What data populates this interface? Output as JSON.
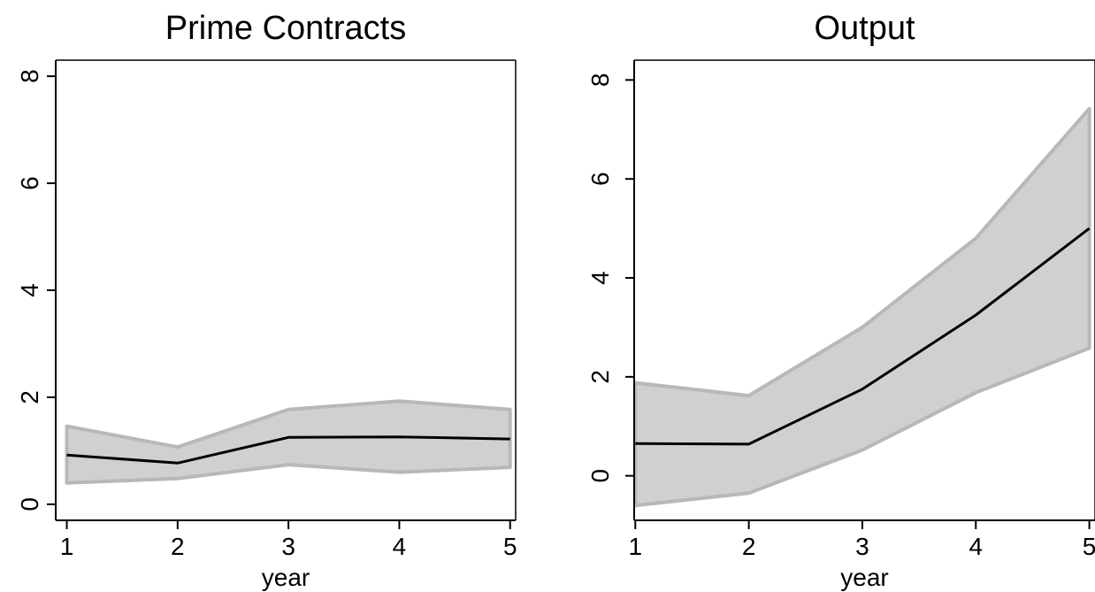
{
  "chart_data": [
    {
      "type": "line",
      "title": "Prime Contracts",
      "xlabel": "year",
      "ylabel": "",
      "x": [
        1,
        2,
        3,
        4,
        5
      ],
      "xticks": [
        1,
        2,
        3,
        4,
        5
      ],
      "yticks": [
        0,
        2,
        4,
        6,
        8
      ],
      "xlim": [
        0.9,
        5.05
      ],
      "ylim": [
        -0.3,
        8.3
      ],
      "grid": false,
      "series": [
        {
          "values": [
            0.92,
            0.77,
            1.25,
            1.26,
            1.22
          ],
          "lower": [
            0.4,
            0.48,
            0.74,
            0.6,
            0.69
          ],
          "upper": [
            1.46,
            1.07,
            1.77,
            1.93,
            1.77
          ]
        }
      ],
      "colors": {
        "line": "#000000",
        "band_fill": "#d0d0d0",
        "band_edge": "#b8b8b8"
      }
    },
    {
      "type": "line",
      "title": "Output",
      "xlabel": "year",
      "ylabel": "",
      "x": [
        1,
        2,
        3,
        4,
        5
      ],
      "xticks": [
        1,
        2,
        3,
        4,
        5
      ],
      "yticks": [
        0,
        2,
        4,
        6,
        8
      ],
      "xlim": [
        0.99,
        5.05
      ],
      "ylim": [
        -0.9,
        8.4
      ],
      "grid": false,
      "series": [
        {
          "values": [
            0.65,
            0.64,
            1.75,
            3.25,
            5.0
          ],
          "lower": [
            -0.6,
            -0.35,
            0.52,
            1.68,
            2.58
          ],
          "upper": [
            1.88,
            1.62,
            3.0,
            4.8,
            7.42
          ]
        }
      ],
      "colors": {
        "line": "#000000",
        "band_fill": "#d0d0d0",
        "band_edge": "#b8b8b8"
      }
    }
  ]
}
